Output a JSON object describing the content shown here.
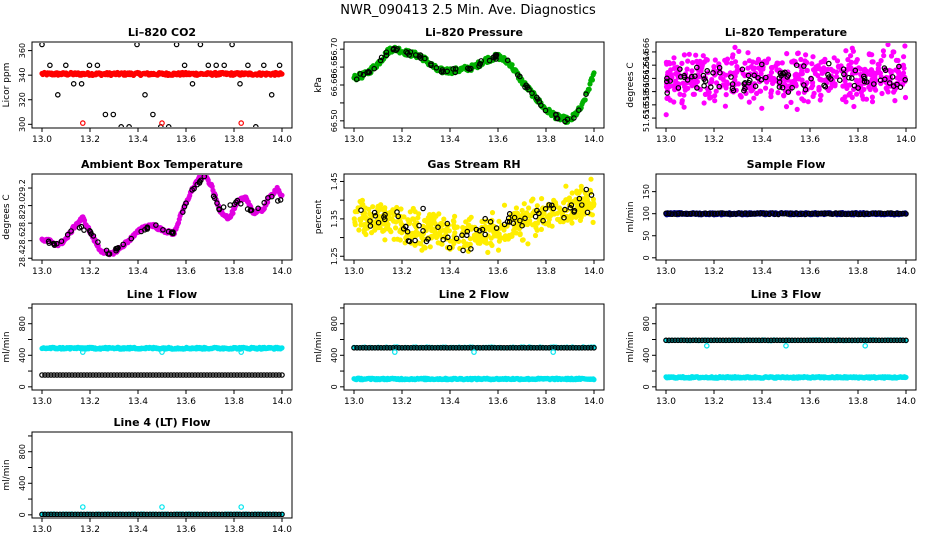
{
  "title": "NWR_090413  2.5 Min. Ave. Diagnostics",
  "chart_data": [
    {
      "type": "scatter",
      "title": "Li–820 CO2",
      "ylabel": "Licor ppm",
      "xlim": [
        13.0,
        14.0
      ],
      "xticks": [
        "13.0",
        "13.2",
        "13.4",
        "13.6",
        "13.8",
        "14.0"
      ],
      "ylim": [
        297,
        367
      ],
      "yticks": [
        300,
        320,
        340,
        360
      ],
      "ytick_labels": [
        "300",
        "320",
        "340",
        "360"
      ],
      "series": [
        {
          "name": "co2-red",
          "color": "#ff0000",
          "kind": "band",
          "x": [
            13.0,
            14.0
          ],
          "values": [
            341,
            341
          ],
          "jitter": 1.2
        },
        {
          "name": "co2-black",
          "color": "#000000",
          "kind": "steps",
          "x": [
            13.0,
            14.0
          ],
          "levels": [
            298,
            308,
            324,
            333,
            348,
            365
          ],
          "spacing": 0.033
        },
        {
          "name": "co2-red-points",
          "color": "#ff0000",
          "kind": "points",
          "x": [
            13.17,
            13.5,
            13.83
          ],
          "values": [
            301,
            301,
            301
          ]
        }
      ]
    },
    {
      "type": "scatter",
      "title": "Li–820 Pressure",
      "ylabel": "kPa",
      "xlim": [
        13.0,
        14.0
      ],
      "xticks": [
        "13.0",
        "13.2",
        "13.4",
        "13.6",
        "13.8",
        "14.0"
      ],
      "ylim": [
        66.48,
        66.72
      ],
      "yticks": [
        66.5,
        66.55,
        66.6,
        66.65,
        66.7
      ],
      "ytick_labels": [
        "66.50",
        "",
        "66.60",
        "66.65",
        "66.70"
      ],
      "series": [
        {
          "name": "pressure-green",
          "color": "#00b000",
          "kind": "band",
          "x": [
            13.0,
            13.05,
            13.1,
            13.15,
            13.18,
            13.22,
            13.28,
            13.35,
            13.42,
            13.5,
            13.55,
            13.6,
            13.65,
            13.7,
            13.75,
            13.8,
            13.85,
            13.9,
            13.95,
            14.0
          ],
          "values": [
            66.62,
            66.63,
            66.66,
            66.7,
            66.7,
            66.69,
            66.68,
            66.64,
            66.64,
            66.65,
            66.67,
            66.68,
            66.66,
            66.61,
            66.57,
            66.53,
            66.51,
            66.5,
            66.54,
            66.63
          ],
          "jitter": 0.008
        },
        {
          "name": "pressure-black",
          "color": "#000000",
          "kind": "sparse",
          "x": [
            13.0,
            13.05,
            13.1,
            13.15,
            13.18,
            13.22,
            13.28,
            13.35,
            13.42,
            13.5,
            13.55,
            13.6,
            13.65,
            13.7,
            13.75,
            13.8,
            13.85,
            13.9,
            13.95,
            14.0
          ],
          "values": [
            66.62,
            66.63,
            66.66,
            66.7,
            66.7,
            66.69,
            66.68,
            66.64,
            66.64,
            66.65,
            66.67,
            66.68,
            66.66,
            66.61,
            66.57,
            66.53,
            66.51,
            66.5,
            66.54,
            66.63
          ],
          "jitter": 0.006
        }
      ]
    },
    {
      "type": "scatter",
      "title": "Li–820 Temperature",
      "ylabel": "degrees C",
      "xlim": [
        13.0,
        14.0
      ],
      "xticks": [
        "13.0",
        "13.2",
        "13.4",
        "13.6",
        "13.8",
        "14.0"
      ],
      "ylim": [
        51.6545,
        51.6675
      ],
      "yticks": [
        51.656,
        51.658,
        51.66,
        51.662,
        51.664,
        51.666
      ],
      "ytick_labels": [
        "51.656",
        "51.658",
        "51.660",
        "51.662",
        "51.664",
        "51.666"
      ],
      "series": [
        {
          "name": "temp-magenta",
          "color": "#ff00ff",
          "kind": "noise",
          "x": [
            13.0,
            14.0
          ],
          "values": [
            51.6615,
            51.6625
          ],
          "jitter": 0.0035,
          "count": 520
        },
        {
          "name": "temp-black",
          "color": "#000000",
          "kind": "noise",
          "x": [
            13.0,
            14.0
          ],
          "values": [
            51.6615,
            51.6625
          ],
          "jitter": 0.002,
          "count": 90
        }
      ]
    },
    {
      "type": "scatter",
      "title": "Ambient Box Temperature",
      "ylabel": "degrees C",
      "xlim": [
        13.0,
        14.0
      ],
      "xticks": [
        "13.0",
        "13.2",
        "13.4",
        "13.6",
        "13.8",
        "14.0"
      ],
      "ylim": [
        28.38,
        29.36
      ],
      "yticks": [
        28.4,
        28.6,
        28.8,
        29.0,
        29.2
      ],
      "ytick_labels": [
        "28.4",
        "28.6",
        "28.8",
        "29.0",
        "29.2"
      ],
      "series": [
        {
          "name": "box-magenta",
          "color": "#e000e0",
          "kind": "band",
          "x": [
            13.0,
            13.03,
            13.07,
            13.1,
            13.14,
            13.17,
            13.2,
            13.24,
            13.28,
            13.32,
            13.36,
            13.42,
            13.46,
            13.5,
            13.55,
            13.58,
            13.62,
            13.65,
            13.68,
            13.71,
            13.74,
            13.78,
            13.82,
            13.85,
            13.88,
            13.92,
            13.95,
            13.98,
            14.0
          ],
          "values": [
            28.6,
            28.6,
            28.55,
            28.62,
            28.78,
            28.86,
            28.7,
            28.5,
            28.44,
            28.5,
            28.6,
            28.75,
            28.78,
            28.72,
            28.68,
            28.9,
            29.15,
            29.3,
            29.35,
            29.2,
            28.95,
            28.85,
            29.05,
            29.1,
            28.92,
            28.95,
            29.1,
            29.2,
            29.1
          ],
          "jitter": 0.02
        },
        {
          "name": "box-black",
          "color": "#000000",
          "kind": "sparse",
          "x": [
            13.0,
            13.07,
            13.14,
            13.2,
            13.28,
            13.36,
            13.46,
            13.55,
            13.62,
            13.68,
            13.74,
            13.82,
            13.88,
            13.95,
            14.0
          ],
          "values": [
            28.6,
            28.55,
            28.78,
            28.7,
            28.44,
            28.6,
            28.78,
            28.68,
            29.15,
            29.35,
            28.95,
            29.05,
            28.92,
            29.1,
            29.05
          ],
          "jitter": 0.015
        }
      ]
    },
    {
      "type": "scatter",
      "title": "Gas Stream RH",
      "ylabel": "percent",
      "xlim": [
        13.0,
        14.0
      ],
      "xticks": [
        "13.0",
        "13.2",
        "13.4",
        "13.6",
        "13.8",
        "14.0"
      ],
      "ylim": [
        1.24,
        1.47
      ],
      "yticks": [
        1.25,
        1.3,
        1.35,
        1.4,
        1.45
      ],
      "ytick_labels": [
        "1.25",
        "",
        "1.35",
        "",
        "1.45"
      ],
      "series": [
        {
          "name": "rh-yellow",
          "color": "#ffee00",
          "kind": "noise",
          "x": [
            13.0,
            13.5,
            14.0
          ],
          "values": [
            1.355,
            1.305,
            1.4
          ],
          "jitter": 0.045,
          "count": 520
        },
        {
          "name": "rh-black",
          "color": "#000000",
          "kind": "noise",
          "x": [
            13.0,
            13.5,
            14.0
          ],
          "values": [
            1.355,
            1.305,
            1.4
          ],
          "jitter": 0.035,
          "count": 70
        }
      ]
    },
    {
      "type": "scatter",
      "title": "Sample Flow",
      "ylabel": "ml/min",
      "xlim": [
        13.0,
        14.0
      ],
      "xticks": [
        "13.0",
        "13.2",
        "13.4",
        "13.6",
        "13.8",
        "14.0"
      ],
      "ylim": [
        -5,
        190
      ],
      "yticks": [
        0,
        50,
        100,
        150
      ],
      "ytick_labels": [
        "0",
        "50",
        "100",
        "150"
      ],
      "series": [
        {
          "name": "flow-navy",
          "color": "#000080",
          "kind": "band",
          "x": [
            13.0,
            14.0
          ],
          "values": [
            100,
            100
          ],
          "jitter": 2.5
        },
        {
          "name": "flow-black",
          "color": "#000000",
          "kind": "band",
          "x": [
            13.0,
            14.0
          ],
          "values": [
            100,
            100
          ],
          "jitter": 1.5,
          "count": 80
        }
      ]
    },
    {
      "type": "scatter",
      "title": "Line 1 Flow",
      "ylabel": "ml/min",
      "xlim": [
        13.0,
        14.0
      ],
      "xticks": [
        "13.0",
        "13.2",
        "13.4",
        "13.6",
        "13.8",
        "14.0"
      ],
      "ylim": [
        -40,
        1050
      ],
      "yticks": [
        0,
        200,
        400,
        600,
        800,
        1000
      ],
      "ytick_labels": [
        "0",
        "",
        "400",
        "",
        "800",
        ""
      ],
      "series": [
        {
          "name": "line1-cyan",
          "color": "#00e5ee",
          "kind": "band",
          "x": [
            13.0,
            14.0
          ],
          "values": [
            490,
            490
          ],
          "jitter": 12
        },
        {
          "name": "line1-black",
          "color": "#000000",
          "kind": "steps",
          "x": [
            13.0,
            14.0
          ],
          "levels": [
            150
          ],
          "spacing": 0.0125
        },
        {
          "name": "line1-cyan-dips",
          "color": "#00e5ee",
          "kind": "points",
          "x": [
            13.17,
            13.5,
            13.83
          ],
          "values": [
            440,
            440,
            440
          ]
        }
      ]
    },
    {
      "type": "scatter",
      "title": "Line 2 Flow",
      "ylabel": "ml/min",
      "xlim": [
        13.0,
        14.0
      ],
      "xticks": [
        "13.0",
        "13.2",
        "13.4",
        "13.6",
        "13.8",
        "14.0"
      ],
      "ylim": [
        -40,
        1050
      ],
      "yticks": [
        0,
        200,
        400,
        600,
        800,
        1000
      ],
      "ytick_labels": [
        "0",
        "",
        "400",
        "",
        "800",
        ""
      ],
      "series": [
        {
          "name": "line2-cyan",
          "color": "#00e5ee",
          "kind": "band",
          "x": [
            13.0,
            14.0
          ],
          "values": [
            100,
            100
          ],
          "jitter": 10
        },
        {
          "name": "line2-cyan-top",
          "color": "#00e5ee",
          "kind": "band",
          "x": [
            13.0,
            14.0
          ],
          "values": [
            500,
            500
          ],
          "jitter": 6,
          "count": 90
        },
        {
          "name": "line2-black",
          "color": "#000000",
          "kind": "steps",
          "x": [
            13.0,
            14.0
          ],
          "levels": [
            495
          ],
          "spacing": 0.0125
        },
        {
          "name": "line2-cyan-dips",
          "color": "#00e5ee",
          "kind": "points",
          "x": [
            13.17,
            13.5,
            13.83
          ],
          "values": [
            440,
            440,
            440
          ]
        }
      ]
    },
    {
      "type": "scatter",
      "title": "Line 3 Flow",
      "ylabel": "ml/min",
      "xlim": [
        13.0,
        14.0
      ],
      "xticks": [
        "13.0",
        "13.2",
        "13.4",
        "13.6",
        "13.8",
        "14.0"
      ],
      "ylim": [
        -40,
        1050
      ],
      "yticks": [
        0,
        200,
        400,
        600,
        800,
        1000
      ],
      "ytick_labels": [
        "0",
        "",
        "400",
        "",
        "800",
        ""
      ],
      "series": [
        {
          "name": "line3-cyan",
          "color": "#00e5ee",
          "kind": "band",
          "x": [
            13.0,
            14.0
          ],
          "values": [
            120,
            120
          ],
          "jitter": 10
        },
        {
          "name": "line3-cyan-top",
          "color": "#00e5ee",
          "kind": "band",
          "x": [
            13.0,
            14.0
          ],
          "values": [
            590,
            590
          ],
          "jitter": 6,
          "count": 90
        },
        {
          "name": "line3-black",
          "color": "#000000",
          "kind": "steps",
          "x": [
            13.0,
            14.0
          ],
          "levels": [
            590
          ],
          "spacing": 0.0125
        },
        {
          "name": "line3-cyan-dips",
          "color": "#00e5ee",
          "kind": "points",
          "x": [
            13.17,
            13.5,
            13.83
          ],
          "values": [
            520,
            520,
            520
          ]
        }
      ]
    },
    {
      "type": "scatter",
      "title": "Line 4 (LT) Flow",
      "ylabel": "ml/min",
      "xlim": [
        13.0,
        14.0
      ],
      "xticks": [
        "13.0",
        "13.2",
        "13.4",
        "13.6",
        "13.8",
        "14.0"
      ],
      "ylim": [
        -40,
        1050
      ],
      "yticks": [
        0,
        200,
        400,
        600,
        800,
        1000
      ],
      "ytick_labels": [
        "0",
        "",
        "400",
        "",
        "800",
        ""
      ],
      "series": [
        {
          "name": "line4-cyan",
          "color": "#00e5ee",
          "kind": "band",
          "x": [
            13.0,
            14.0
          ],
          "values": [
            5,
            5
          ],
          "jitter": 5
        },
        {
          "name": "line4-black",
          "color": "#000000",
          "kind": "steps",
          "x": [
            13.0,
            14.0
          ],
          "levels": [
            5
          ],
          "spacing": 0.0125
        },
        {
          "name": "line4-cyan-spikes",
          "color": "#00e5ee",
          "kind": "points",
          "x": [
            13.17,
            13.5,
            13.83
          ],
          "values": [
            100,
            100,
            100
          ]
        }
      ]
    }
  ]
}
